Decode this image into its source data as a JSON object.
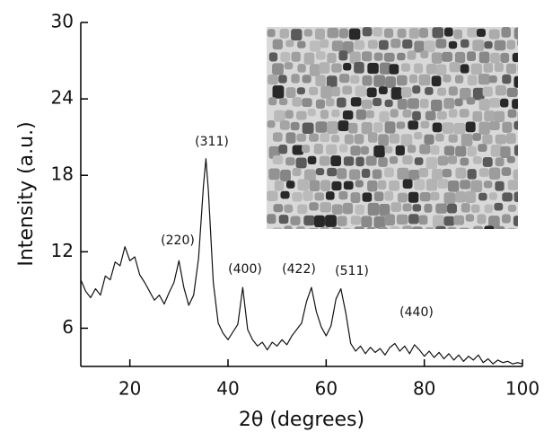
{
  "chart_data": {
    "type": "line",
    "x_label": "2θ (degrees)",
    "y_label": "Intensity (a.u.)",
    "xlim": [
      10,
      100
    ],
    "xticks": [
      20,
      40,
      60,
      80,
      100
    ],
    "ylim": [
      3,
      30
    ],
    "yticks": [
      6,
      12,
      18,
      24,
      30
    ],
    "x": [
      10,
      11,
      12,
      13,
      14,
      15,
      16,
      17,
      18,
      19,
      20,
      21,
      22,
      23,
      24,
      25,
      26,
      27,
      28,
      29,
      30,
      31,
      32,
      33,
      34,
      35,
      35.5,
      36,
      37,
      38,
      39,
      40,
      41,
      42,
      43,
      44,
      45,
      46,
      47,
      48,
      49,
      50,
      51,
      52,
      53,
      54,
      55,
      56,
      57,
      58,
      59,
      60,
      61,
      62,
      63,
      64,
      65,
      66,
      67,
      68,
      69,
      70,
      71,
      72,
      73,
      74,
      75,
      76,
      77,
      78,
      79,
      80,
      81,
      82,
      83,
      84,
      85,
      86,
      87,
      88,
      89,
      90,
      91,
      92,
      93,
      94,
      95,
      96,
      97,
      98,
      99,
      100
    ],
    "series": [
      {
        "color": "#111111",
        "values": [
          9.8,
          8.9,
          8.4,
          9.1,
          8.6,
          10.1,
          9.8,
          11.2,
          10.9,
          12.4,
          11.3,
          11.6,
          10.2,
          9.6,
          8.9,
          8.2,
          8.6,
          7.9,
          8.8,
          9.6,
          11.3,
          9.2,
          7.8,
          8.6,
          11.5,
          17.2,
          19.3,
          16.8,
          9.6,
          6.4,
          5.6,
          5.1,
          5.7,
          6.3,
          9.2,
          5.9,
          5.1,
          4.6,
          4.9,
          4.3,
          4.9,
          4.6,
          5.1,
          4.7,
          5.4,
          5.9,
          6.4,
          8.1,
          9.2,
          7.3,
          6.1,
          5.4,
          6.2,
          8.3,
          9.1,
          7.2,
          4.8,
          4.2,
          4.6,
          4.0,
          4.5,
          4.1,
          4.4,
          3.9,
          4.5,
          4.8,
          4.2,
          4.6,
          4.0,
          4.7,
          4.3,
          3.8,
          4.2,
          3.7,
          4.1,
          3.6,
          4.0,
          3.5,
          3.9,
          3.4,
          3.8,
          3.5,
          3.9,
          3.3,
          3.6,
          3.2,
          3.5,
          3.3,
          3.4,
          3.2,
          3.3,
          3.2
        ]
      }
    ],
    "annotations": [
      "(220)",
      "(311)",
      "(400)",
      "(422)",
      "(511)",
      "(440)"
    ]
  }
}
